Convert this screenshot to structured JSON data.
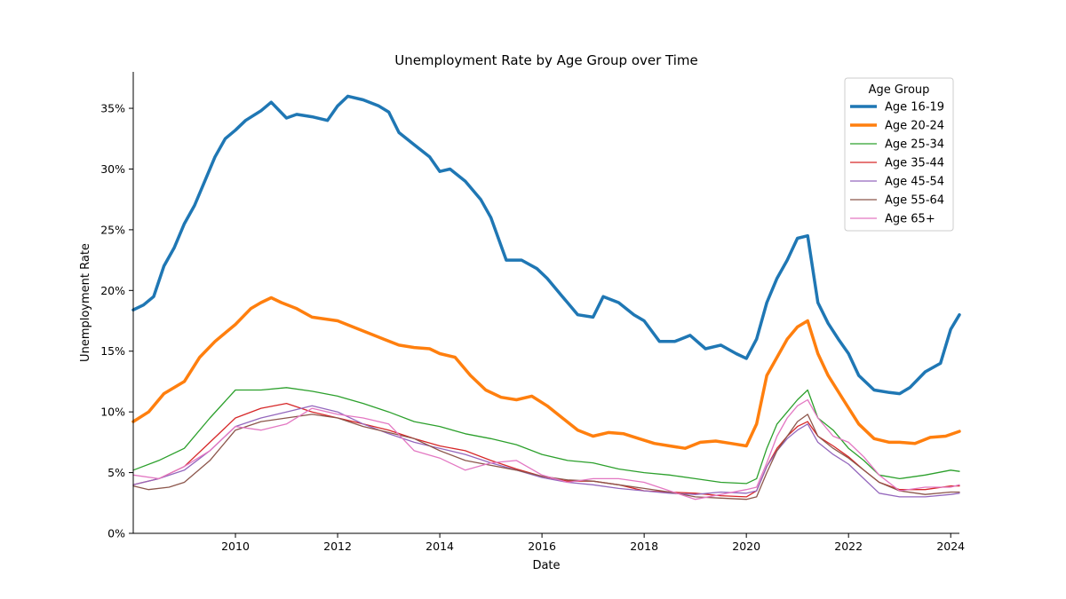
{
  "chart_data": {
    "type": "line",
    "title": "Unemployment Rate by Age Group over Time",
    "xlabel": "Date",
    "ylabel": "Unemployment Rate",
    "xlim": [
      2008.0,
      2024.17
    ],
    "ylim": [
      0,
      0.38
    ],
    "xticks": [
      2010,
      2012,
      2014,
      2016,
      2018,
      2020,
      2022,
      2024
    ],
    "xtick_labels": [
      "2010",
      "2012",
      "2014",
      "2016",
      "2018",
      "2020",
      "2022",
      "2024"
    ],
    "yticks": [
      0,
      0.05,
      0.1,
      0.15,
      0.2,
      0.25,
      0.3,
      0.35
    ],
    "ytick_labels": [
      "0%",
      "5%",
      "10%",
      "15%",
      "20%",
      "25%",
      "30%",
      "35%"
    ],
    "grid": false,
    "legend": {
      "title": "Age Group",
      "position": "upper-right"
    },
    "series": [
      {
        "name": "Age 16-19",
        "color": "#1f77b4",
        "width": 3.5,
        "x": [
          2008.0,
          2008.2,
          2008.4,
          2008.6,
          2008.8,
          2009.0,
          2009.2,
          2009.4,
          2009.6,
          2009.8,
          2010.0,
          2010.2,
          2010.5,
          2010.7,
          2011.0,
          2011.2,
          2011.5,
          2011.8,
          2012.0,
          2012.2,
          2012.5,
          2012.8,
          2013.0,
          2013.2,
          2013.5,
          2013.8,
          2014.0,
          2014.2,
          2014.5,
          2014.8,
          2015.0,
          2015.3,
          2015.6,
          2015.9,
          2016.1,
          2016.4,
          2016.7,
          2017.0,
          2017.2,
          2017.5,
          2017.8,
          2018.0,
          2018.3,
          2018.6,
          2018.9,
          2019.2,
          2019.5,
          2019.8,
          2020.0,
          2020.2,
          2020.4,
          2020.6,
          2020.8,
          2021.0,
          2021.2,
          2021.4,
          2021.6,
          2021.8,
          2022.0,
          2022.2,
          2022.5,
          2022.8,
          2023.0,
          2023.2,
          2023.5,
          2023.8,
          2024.0,
          2024.17
        ],
        "y": [
          0.184,
          0.188,
          0.195,
          0.22,
          0.235,
          0.255,
          0.27,
          0.29,
          0.31,
          0.325,
          0.332,
          0.34,
          0.348,
          0.355,
          0.342,
          0.345,
          0.343,
          0.34,
          0.352,
          0.36,
          0.357,
          0.352,
          0.347,
          0.33,
          0.32,
          0.31,
          0.298,
          0.3,
          0.29,
          0.275,
          0.26,
          0.225,
          0.225,
          0.218,
          0.21,
          0.195,
          0.18,
          0.178,
          0.195,
          0.19,
          0.18,
          0.175,
          0.158,
          0.158,
          0.163,
          0.152,
          0.155,
          0.148,
          0.144,
          0.16,
          0.19,
          0.21,
          0.225,
          0.243,
          0.245,
          0.19,
          0.173,
          0.16,
          0.148,
          0.13,
          0.118,
          0.116,
          0.115,
          0.12,
          0.133,
          0.14,
          0.168,
          0.18
        ]
      },
      {
        "name": "Age 20-24",
        "color": "#ff7f0e",
        "width": 3.5,
        "x": [
          2008.0,
          2008.3,
          2008.6,
          2009.0,
          2009.3,
          2009.6,
          2010.0,
          2010.3,
          2010.5,
          2010.7,
          2010.9,
          2011.2,
          2011.5,
          2012.0,
          2012.3,
          2012.6,
          2012.9,
          2013.2,
          2013.5,
          2013.8,
          2014.0,
          2014.3,
          2014.6,
          2014.9,
          2015.2,
          2015.5,
          2015.8,
          2016.1,
          2016.4,
          2016.7,
          2017.0,
          2017.3,
          2017.6,
          2017.9,
          2018.2,
          2018.5,
          2018.8,
          2019.1,
          2019.4,
          2019.7,
          2020.0,
          2020.2,
          2020.4,
          2020.6,
          2020.8,
          2021.0,
          2021.2,
          2021.4,
          2021.6,
          2021.9,
          2022.2,
          2022.5,
          2022.8,
          2023.0,
          2023.3,
          2023.6,
          2023.9,
          2024.17
        ],
        "y": [
          0.092,
          0.1,
          0.115,
          0.125,
          0.145,
          0.158,
          0.172,
          0.185,
          0.19,
          0.194,
          0.19,
          0.185,
          0.178,
          0.175,
          0.17,
          0.165,
          0.16,
          0.155,
          0.153,
          0.152,
          0.148,
          0.145,
          0.13,
          0.118,
          0.112,
          0.11,
          0.113,
          0.105,
          0.095,
          0.085,
          0.08,
          0.083,
          0.082,
          0.078,
          0.074,
          0.072,
          0.07,
          0.075,
          0.076,
          0.074,
          0.072,
          0.09,
          0.13,
          0.145,
          0.16,
          0.17,
          0.175,
          0.148,
          0.13,
          0.11,
          0.09,
          0.078,
          0.075,
          0.075,
          0.074,
          0.079,
          0.08,
          0.084
        ]
      },
      {
        "name": "Age 25-34",
        "color": "#2ca02c",
        "width": 1.3,
        "x": [
          2008.0,
          2008.5,
          2009.0,
          2009.5,
          2010.0,
          2010.5,
          2011.0,
          2011.5,
          2012.0,
          2012.5,
          2013.0,
          2013.5,
          2014.0,
          2014.5,
          2015.0,
          2015.5,
          2016.0,
          2016.5,
          2017.0,
          2017.5,
          2018.0,
          2018.5,
          2019.0,
          2019.5,
          2020.0,
          2020.2,
          2020.4,
          2020.6,
          2020.8,
          2021.0,
          2021.2,
          2021.4,
          2021.7,
          2022.0,
          2022.3,
          2022.6,
          2023.0,
          2023.5,
          2024.0,
          2024.17
        ],
        "y": [
          0.052,
          0.06,
          0.07,
          0.095,
          0.118,
          0.118,
          0.12,
          0.117,
          0.113,
          0.107,
          0.1,
          0.092,
          0.088,
          0.082,
          0.078,
          0.073,
          0.065,
          0.06,
          0.058,
          0.053,
          0.05,
          0.048,
          0.045,
          0.042,
          0.041,
          0.045,
          0.07,
          0.09,
          0.1,
          0.11,
          0.118,
          0.095,
          0.085,
          0.07,
          0.06,
          0.048,
          0.045,
          0.048,
          0.052,
          0.051
        ]
      },
      {
        "name": "Age 35-44",
        "color": "#d62728",
        "width": 1.3,
        "x": [
          2008.0,
          2008.5,
          2009.0,
          2009.5,
          2010.0,
          2010.5,
          2011.0,
          2011.5,
          2012.0,
          2012.5,
          2013.0,
          2013.5,
          2014.0,
          2014.5,
          2015.0,
          2015.5,
          2016.0,
          2016.5,
          2017.0,
          2017.5,
          2018.0,
          2018.5,
          2019.0,
          2019.5,
          2020.0,
          2020.2,
          2020.4,
          2020.6,
          2020.8,
          2021.0,
          2021.2,
          2021.4,
          2021.7,
          2022.0,
          2022.3,
          2022.6,
          2023.0,
          2023.5,
          2024.0,
          2024.17
        ],
        "y": [
          0.04,
          0.045,
          0.055,
          0.075,
          0.095,
          0.103,
          0.107,
          0.1,
          0.095,
          0.09,
          0.085,
          0.078,
          0.072,
          0.068,
          0.06,
          0.053,
          0.047,
          0.043,
          0.043,
          0.04,
          0.035,
          0.034,
          0.033,
          0.031,
          0.03,
          0.035,
          0.055,
          0.07,
          0.08,
          0.088,
          0.092,
          0.08,
          0.072,
          0.063,
          0.052,
          0.042,
          0.036,
          0.036,
          0.039,
          0.039
        ]
      },
      {
        "name": "Age 45-54",
        "color": "#9467bd",
        "width": 1.3,
        "x": [
          2008.0,
          2008.5,
          2009.0,
          2009.5,
          2010.0,
          2010.5,
          2011.0,
          2011.5,
          2012.0,
          2012.5,
          2013.0,
          2013.5,
          2014.0,
          2014.5,
          2015.0,
          2015.5,
          2016.0,
          2016.5,
          2017.0,
          2017.5,
          2018.0,
          2018.5,
          2019.0,
          2019.5,
          2020.0,
          2020.2,
          2020.4,
          2020.6,
          2020.8,
          2021.0,
          2021.2,
          2021.4,
          2021.7,
          2022.0,
          2022.3,
          2022.6,
          2023.0,
          2023.5,
          2024.0,
          2024.17
        ],
        "y": [
          0.04,
          0.045,
          0.052,
          0.068,
          0.088,
          0.095,
          0.1,
          0.105,
          0.1,
          0.09,
          0.082,
          0.075,
          0.07,
          0.065,
          0.058,
          0.052,
          0.046,
          0.042,
          0.04,
          0.037,
          0.035,
          0.033,
          0.032,
          0.034,
          0.033,
          0.035,
          0.055,
          0.068,
          0.078,
          0.085,
          0.09,
          0.075,
          0.065,
          0.057,
          0.045,
          0.033,
          0.03,
          0.03,
          0.032,
          0.033
        ]
      },
      {
        "name": "Age 55-64",
        "color": "#8c564b",
        "width": 1.3,
        "x": [
          2008.0,
          2008.3,
          2008.7,
          2009.0,
          2009.5,
          2010.0,
          2010.5,
          2011.0,
          2011.5,
          2012.0,
          2012.5,
          2013.0,
          2013.5,
          2014.0,
          2014.5,
          2015.0,
          2015.5,
          2016.0,
          2016.5,
          2017.0,
          2017.5,
          2018.0,
          2018.5,
          2019.0,
          2019.5,
          2020.0,
          2020.2,
          2020.4,
          2020.6,
          2020.8,
          2021.0,
          2021.2,
          2021.4,
          2021.7,
          2022.0,
          2022.3,
          2022.6,
          2023.0,
          2023.5,
          2024.0,
          2024.17
        ],
        "y": [
          0.039,
          0.036,
          0.038,
          0.042,
          0.06,
          0.085,
          0.092,
          0.095,
          0.098,
          0.095,
          0.088,
          0.083,
          0.078,
          0.068,
          0.06,
          0.056,
          0.052,
          0.047,
          0.044,
          0.043,
          0.04,
          0.037,
          0.034,
          0.03,
          0.029,
          0.028,
          0.03,
          0.05,
          0.068,
          0.08,
          0.092,
          0.098,
          0.08,
          0.07,
          0.062,
          0.052,
          0.042,
          0.035,
          0.032,
          0.034,
          0.034
        ]
      },
      {
        "name": "Age 65+",
        "color": "#e377c2",
        "width": 1.3,
        "x": [
          2008.0,
          2008.5,
          2009.0,
          2009.5,
          2010.0,
          2010.5,
          2011.0,
          2011.5,
          2012.0,
          2012.5,
          2013.0,
          2013.5,
          2014.0,
          2014.5,
          2015.0,
          2015.5,
          2016.0,
          2016.5,
          2017.0,
          2017.5,
          2018.0,
          2018.5,
          2019.0,
          2019.5,
          2020.0,
          2020.2,
          2020.4,
          2020.6,
          2020.8,
          2021.0,
          2021.2,
          2021.4,
          2021.7,
          2022.0,
          2022.3,
          2022.6,
          2023.0,
          2023.5,
          2024.0,
          2024.17
        ],
        "y": [
          0.048,
          0.045,
          0.055,
          0.068,
          0.088,
          0.085,
          0.09,
          0.103,
          0.098,
          0.095,
          0.09,
          0.068,
          0.062,
          0.052,
          0.058,
          0.06,
          0.048,
          0.042,
          0.045,
          0.045,
          0.042,
          0.035,
          0.028,
          0.032,
          0.036,
          0.038,
          0.058,
          0.08,
          0.095,
          0.105,
          0.11,
          0.095,
          0.08,
          0.075,
          0.063,
          0.048,
          0.035,
          0.038,
          0.038,
          0.04
        ]
      }
    ]
  }
}
